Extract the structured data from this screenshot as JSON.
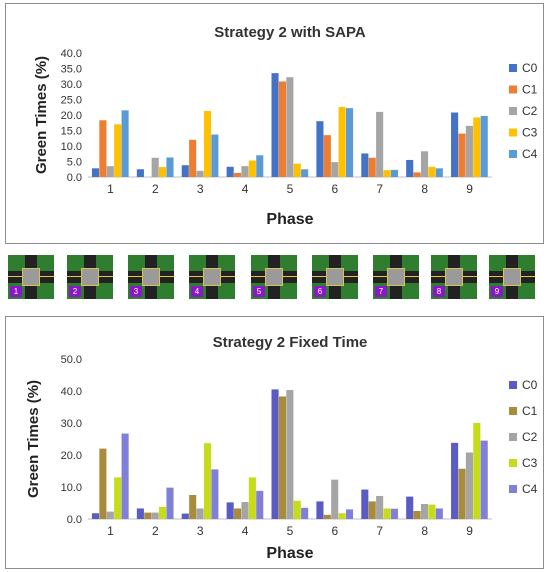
{
  "chart_data": [
    {
      "type": "bar",
      "title": "Strategy 2 with SAPA",
      "xlabel": "Phase",
      "ylabel": "Green Times (%)",
      "ylim": [
        0,
        40
      ],
      "yticks": [
        "0.0",
        "5.0",
        "10.0",
        "15.0",
        "20.0",
        "25.0",
        "30.0",
        "35.0",
        "40.0"
      ],
      "categories": [
        "1",
        "2",
        "3",
        "4",
        "5",
        "6",
        "7",
        "8",
        "9"
      ],
      "legend_position": "right",
      "grid": false,
      "series": [
        {
          "name": "C0",
          "color": "#4472c4",
          "values": [
            2.8,
            2.5,
            3.8,
            3.3,
            33.5,
            18.0,
            7.6,
            5.5,
            20.8
          ]
        },
        {
          "name": "C1",
          "color": "#ed7d31",
          "values": [
            18.3,
            0,
            12.0,
            1.3,
            30.8,
            13.5,
            6.2,
            1.5,
            14.0
          ]
        },
        {
          "name": "C2",
          "color": "#a5a5a5",
          "values": [
            3.5,
            6.2,
            2.0,
            3.5,
            32.2,
            4.8,
            21.0,
            8.3,
            16.5
          ]
        },
        {
          "name": "C3",
          "color": "#ffc000",
          "values": [
            17.0,
            3.2,
            21.3,
            5.3,
            4.3,
            22.6,
            2.2,
            3.3,
            19.2
          ]
        },
        {
          "name": "C4",
          "color": "#5b9bd5",
          "values": [
            21.5,
            6.3,
            13.7,
            7.0,
            2.5,
            22.2,
            2.3,
            2.8,
            19.7
          ]
        }
      ]
    },
    {
      "type": "bar",
      "title": "Strategy 2 Fixed Time",
      "xlabel": "Phase",
      "ylabel": "Green Times (%)",
      "ylim": [
        0,
        50
      ],
      "yticks": [
        "0.0",
        "10.0",
        "20.0",
        "30.0",
        "40.0",
        "50.0"
      ],
      "categories": [
        "1",
        "2",
        "3",
        "4",
        "5",
        "6",
        "7",
        "8",
        "9"
      ],
      "legend_position": "right",
      "grid": false,
      "series": [
        {
          "name": "C0",
          "color": "#5b5bc4",
          "values": [
            1.8,
            3.3,
            1.7,
            5.2,
            40.5,
            5.5,
            9.2,
            7.0,
            23.8
          ]
        },
        {
          "name": "C1",
          "color": "#a98c3b",
          "values": [
            22.0,
            2.0,
            7.5,
            3.3,
            38.3,
            1.3,
            5.5,
            2.5,
            15.7
          ]
        },
        {
          "name": "C2",
          "color": "#a5a5a5",
          "values": [
            2.3,
            2.0,
            3.3,
            5.3,
            40.3,
            12.3,
            7.2,
            4.7,
            20.8
          ]
        },
        {
          "name": "C3",
          "color": "#c6dc1a",
          "values": [
            13.0,
            3.8,
            23.7,
            13.0,
            5.7,
            1.8,
            3.3,
            4.5,
            30.0
          ]
        },
        {
          "name": "C4",
          "color": "#8080d8",
          "values": [
            26.7,
            9.8,
            15.5,
            8.8,
            3.5,
            3.0,
            3.2,
            3.3,
            24.5
          ]
        }
      ]
    }
  ],
  "phase_strip": {
    "labels": [
      "1",
      "2",
      "3",
      "4",
      "5",
      "6",
      "7",
      "8",
      "9"
    ]
  }
}
